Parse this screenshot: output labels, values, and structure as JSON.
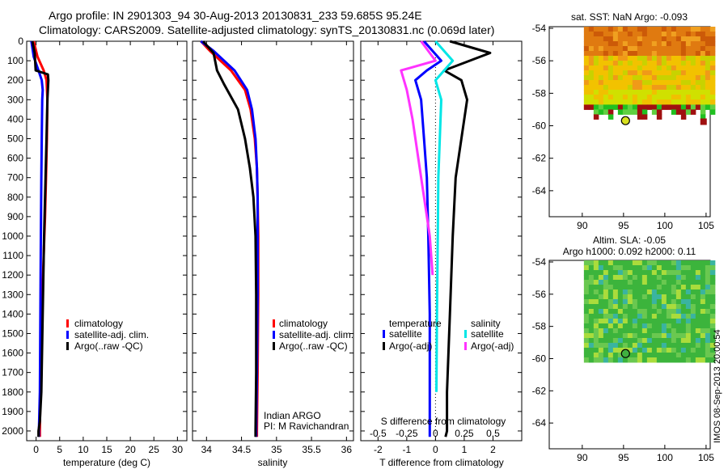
{
  "header": {
    "title_line1": "Argo profile: IN 2901303_94 30-Aug-2013 20130831_233 59.685S 95.24E",
    "title_line2": "Climatology: CARS2009. Satellite-adjusted climatology: synTS_20130831.nc (0.069d later)"
  },
  "colors": {
    "climatology": "#ff0000",
    "satellite": "#0000ff",
    "argo": "#000000",
    "satellite_salinity": "#00e6e6",
    "argo_salinity": "#ff33ff"
  },
  "chart_data": [
    {
      "type": "line",
      "panel": "temperature",
      "xlabel": "temperature (deg C)",
      "xlim": [
        -2,
        32
      ],
      "xticks": [
        "0",
        "5",
        "10",
        "15",
        "20",
        "25",
        "30"
      ],
      "xtick_values": [
        0,
        5,
        10,
        15,
        20,
        25,
        30
      ],
      "ylim": [
        0,
        2050
      ],
      "yticks": [
        "0",
        "100",
        "200",
        "300",
        "400",
        "500",
        "600",
        "700",
        "800",
        "900",
        "1000",
        "1100",
        "1200",
        "1300",
        "1400",
        "1500",
        "1600",
        "1700",
        "1800",
        "1900",
        "2000"
      ],
      "ytick_values": [
        0,
        100,
        200,
        300,
        400,
        500,
        600,
        700,
        800,
        900,
        1000,
        1100,
        1200,
        1300,
        1400,
        1500,
        1600,
        1700,
        1800,
        1900,
        2000
      ],
      "legend": [
        "climatology",
        "satellite-adj. clim.",
        "Argo(..raw -QC)"
      ],
      "series": [
        {
          "name": "climatology",
          "color": "#ff0000",
          "x": [
            -0.5,
            0.3,
            1.6,
            2.2,
            2.4,
            2.3,
            2.1,
            1.9,
            1.6,
            1.2,
            0.9,
            0.8,
            0.8
          ],
          "y": [
            0,
            80,
            150,
            200,
            300,
            500,
            700,
            900,
            1100,
            1400,
            1800,
            2000,
            2030
          ]
        },
        {
          "name": "satellite-adj. clim.",
          "color": "#0000ff",
          "x": [
            -1.0,
            -0.5,
            0.5,
            1.2,
            1.4,
            1.3,
            1.2,
            1.1,
            1.0,
            0.9,
            0.8,
            0.6,
            0.6
          ],
          "y": [
            0,
            80,
            150,
            200,
            250,
            300,
            500,
            700,
            1000,
            1400,
            1800,
            2000,
            2030
          ]
        },
        {
          "name": "Argo(..raw -QC)",
          "color": "#000000",
          "x": [
            -0.8,
            -0.3,
            -0.1,
            2.5,
            2.6,
            2.4,
            2.2,
            2.0,
            1.7,
            1.4,
            1.1,
            0.8,
            0.5,
            0.5
          ],
          "y": [
            0,
            60,
            150,
            170,
            200,
            300,
            500,
            700,
            1000,
            1400,
            1800,
            1950,
            2000,
            2030
          ]
        }
      ]
    },
    {
      "type": "line",
      "panel": "salinity",
      "xlabel": "salinity",
      "xlim": [
        33.8,
        36.1
      ],
      "xticks": [
        "34",
        "34.5",
        "35",
        "35.5",
        "36"
      ],
      "xtick_values": [
        34,
        34.5,
        35,
        35.5,
        36
      ],
      "ylim": [
        0,
        2050
      ],
      "legend": [
        "climatology",
        "satellite-adj. clim.",
        "Argo(..raw -QC)"
      ],
      "annotation_line1": "Indian ARGO",
      "annotation_line2": "PI: M Ravichandran",
      "series": [
        {
          "name": "climatology",
          "color": "#ff0000",
          "x": [
            33.92,
            34.05,
            34.35,
            34.55,
            34.63,
            34.69,
            34.72,
            34.73,
            34.74,
            34.74,
            34.73,
            34.72,
            34.72
          ],
          "y": [
            0,
            50,
            150,
            250,
            350,
            500,
            650,
            800,
            1000,
            1300,
            1700,
            2000,
            2030
          ]
        },
        {
          "name": "satellite-adj. clim.",
          "color": "#0000ff",
          "x": [
            33.92,
            34.1,
            34.4,
            34.58,
            34.65,
            34.7,
            34.72,
            34.73,
            34.73,
            34.73,
            34.72,
            34.71,
            34.71
          ],
          "y": [
            0,
            50,
            150,
            250,
            350,
            500,
            650,
            800,
            1000,
            1300,
            1700,
            2000,
            2030
          ]
        },
        {
          "name": "Argo(..raw -QC)",
          "color": "#000000",
          "x": [
            33.95,
            34.1,
            34.15,
            34.25,
            34.45,
            34.55,
            34.62,
            34.67,
            34.7,
            34.71,
            34.71,
            34.7,
            34.7
          ],
          "y": [
            0,
            60,
            150,
            220,
            350,
            500,
            650,
            800,
            1000,
            1300,
            1700,
            2000,
            2030
          ]
        }
      ]
    },
    {
      "type": "line",
      "panel": "differences",
      "xlabel": "T difference from climatology",
      "xlabel_top": "S difference from climatology",
      "xlim": [
        -2.6,
        3.0
      ],
      "xticks": [
        "-2",
        "-1",
        "0",
        "1",
        "2"
      ],
      "xtick_values": [
        -2,
        -1,
        0,
        1,
        2
      ],
      "sticks": [
        "-0.5",
        "-0.25",
        "0",
        "0.25",
        "0.5"
      ],
      "stick_values": [
        -0.5,
        -0.25,
        0,
        0.25,
        0.5
      ],
      "ylim": [
        0,
        2050
      ],
      "legend_temperature": "temperature",
      "legend_salinity": "salinity",
      "legend_satellite": "satellite",
      "legend_argo": "Argo(-adj)",
      "series": [
        {
          "name": "temperature satellite",
          "color": "#0000ff",
          "x": [
            -0.4,
            0.2,
            -0.3,
            -0.7,
            -0.5,
            -0.4,
            -0.3,
            -0.25,
            -0.2,
            -0.2,
            -0.2,
            -0.2
          ],
          "y": [
            0,
            100,
            150,
            200,
            300,
            500,
            700,
            1000,
            1400,
            1800,
            2000,
            2030
          ]
        },
        {
          "name": "temperature Argo(-adj)",
          "color": "#000000",
          "x": [
            0.5,
            1.9,
            0.3,
            0.9,
            1.1,
            0.9,
            0.7,
            0.6,
            0.5,
            0.4,
            0.4,
            0.35
          ],
          "y": [
            0,
            60,
            150,
            200,
            300,
            500,
            700,
            1000,
            1400,
            1800,
            2000,
            2030
          ]
        },
        {
          "name": "salinity satellite",
          "color": "#00e6e6",
          "x": [
            0.0,
            0.6,
            0.0,
            0.2,
            0.15,
            0.1,
            0.08,
            0.05,
            0.03
          ],
          "y": [
            0,
            100,
            200,
            300,
            500,
            700,
            1000,
            1400,
            1800
          ]
        },
        {
          "name": "salinity Argo(-adj)",
          "color": "#ff33ff",
          "x": [
            -0.5,
            0.0,
            -1.2,
            -1.0,
            -0.8,
            -0.6,
            -0.4,
            -0.2,
            -0.1
          ],
          "y": [
            0,
            100,
            150,
            250,
            400,
            600,
            800,
            1000,
            1200
          ]
        }
      ]
    },
    {
      "type": "heatmap",
      "panel": "sst_map",
      "title": "sat. SST: NaN Argo: -0.093",
      "xlim": [
        86,
        105.5
      ],
      "xticks": [
        "90",
        "95",
        "100",
        "105"
      ],
      "xtick_values": [
        90,
        95,
        100,
        105
      ],
      "ylim": [
        -65.6,
        -53.9
      ],
      "yticks": [
        "-54",
        "-56",
        "-58",
        "-60",
        "-62",
        "-64"
      ],
      "ytick_values": [
        -54,
        -56,
        -58,
        -60,
        -62,
        -64
      ],
      "argo_position": {
        "lon": 95.24,
        "lat": -59.685
      }
    },
    {
      "type": "heatmap",
      "panel": "sla_map",
      "title_line1": "Altim. SLA: -0.05",
      "title_line2": "Argo h1000: 0.092 h2000: 0.11",
      "xlim": [
        86,
        105.5
      ],
      "xticks": [
        "90",
        "95",
        "100",
        "105"
      ],
      "xtick_values": [
        90,
        95,
        100,
        105
      ],
      "ylim": [
        -65.6,
        -53.9
      ],
      "yticks": [
        "-54",
        "-56",
        "-58",
        "-60",
        "-62",
        "-64"
      ],
      "ytick_values": [
        -54,
        -56,
        -58,
        -60,
        -62,
        -64
      ],
      "argo_position": {
        "lon": 95.24,
        "lat": -59.685
      }
    }
  ],
  "footer": {
    "stamp": "IMOS 08-Sep-2013 20:00:54"
  }
}
